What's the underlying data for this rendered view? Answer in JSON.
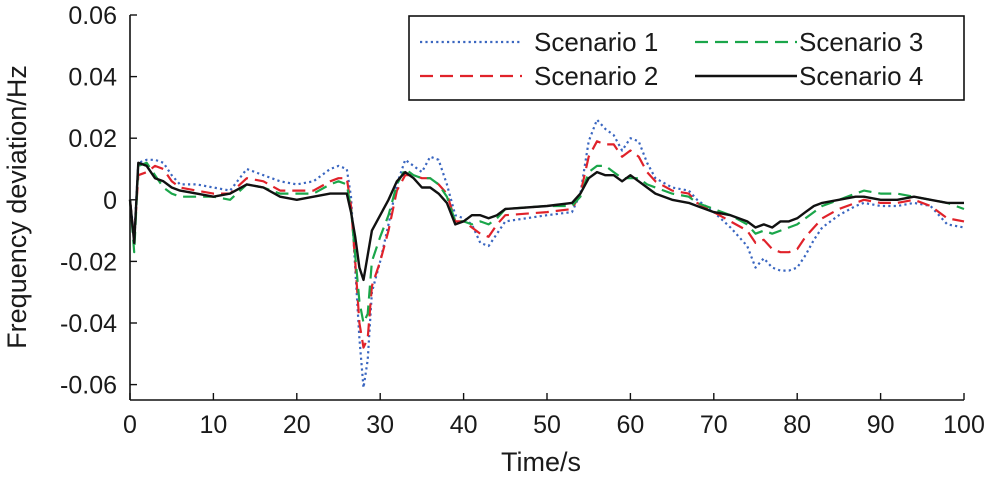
{
  "chart_data": {
    "type": "line",
    "title": "",
    "xlabel": "Time/s",
    "ylabel": "Frequency deviation/Hz",
    "xlim": [
      0,
      100
    ],
    "ylim": [
      -0.065,
      0.06
    ],
    "x_ticks": [
      0,
      10,
      20,
      30,
      40,
      50,
      60,
      70,
      80,
      90,
      100
    ],
    "x_tick_labels": [
      "0",
      "10",
      "20",
      "30",
      "40",
      "50",
      "60",
      "70",
      "80",
      "90",
      "100"
    ],
    "y_ticks": [
      -0.06,
      -0.04,
      -0.02,
      0,
      0.02,
      0.04,
      0.06
    ],
    "y_tick_labels": [
      "-0.06",
      "-0.04",
      "-0.02",
      "0",
      "0.02",
      "0.04",
      "0.06"
    ],
    "grid": false,
    "legend_position": "top-right",
    "series": [
      {
        "name": "Scenario 1",
        "color": "#3a66c0",
        "dash": "dotted",
        "points": [
          [
            0,
            0
          ],
          [
            0.5,
            -0.012
          ],
          [
            1,
            0.012
          ],
          [
            2,
            0.013
          ],
          [
            3,
            0.013
          ],
          [
            4,
            0.012
          ],
          [
            5,
            0.008
          ],
          [
            6,
            0.005
          ],
          [
            8,
            0.005
          ],
          [
            10,
            0.004
          ],
          [
            12,
            0.003
          ],
          [
            14,
            0.01
          ],
          [
            16,
            0.008
          ],
          [
            18,
            0.006
          ],
          [
            20,
            0.005
          ],
          [
            22,
            0.006
          ],
          [
            24,
            0.01
          ],
          [
            25,
            0.011
          ],
          [
            26,
            0.01
          ],
          [
            26.5,
            0.001
          ],
          [
            27,
            -0.022
          ],
          [
            27.5,
            -0.045
          ],
          [
            28,
            -0.061
          ],
          [
            28.5,
            -0.052
          ],
          [
            29,
            -0.03
          ],
          [
            30,
            -0.02
          ],
          [
            31,
            -0.008
          ],
          [
            32,
            0.005
          ],
          [
            33,
            0.013
          ],
          [
            34,
            0.011
          ],
          [
            35,
            0.009
          ],
          [
            36,
            0.014
          ],
          [
            37,
            0.013
          ],
          [
            38,
            0.005
          ],
          [
            39,
            -0.005
          ],
          [
            40,
            -0.006
          ],
          [
            41,
            -0.008
          ],
          [
            42,
            -0.014
          ],
          [
            43,
            -0.015
          ],
          [
            44,
            -0.011
          ],
          [
            45,
            -0.007
          ],
          [
            50,
            -0.005
          ],
          [
            53,
            -0.004
          ],
          [
            54,
            0.002
          ],
          [
            55,
            0.019
          ],
          [
            56,
            0.026
          ],
          [
            57,
            0.023
          ],
          [
            58,
            0.021
          ],
          [
            59,
            0.016
          ],
          [
            60,
            0.02
          ],
          [
            61,
            0.019
          ],
          [
            62,
            0.012
          ],
          [
            63,
            0.007
          ],
          [
            65,
            0.004
          ],
          [
            67,
            0.003
          ],
          [
            68,
            0
          ],
          [
            70,
            -0.004
          ],
          [
            72,
            -0.009
          ],
          [
            74,
            -0.015
          ],
          [
            75,
            -0.022
          ],
          [
            76,
            -0.019
          ],
          [
            77,
            -0.022
          ],
          [
            78,
            -0.023
          ],
          [
            79,
            -0.023
          ],
          [
            80,
            -0.022
          ],
          [
            81,
            -0.018
          ],
          [
            82,
            -0.013
          ],
          [
            83,
            -0.009
          ],
          [
            85,
            -0.005
          ],
          [
            87,
            -0.002
          ],
          [
            88,
            -0.001
          ],
          [
            90,
            -0.002
          ],
          [
            92,
            -0.002
          ],
          [
            94,
            -0.001
          ],
          [
            96,
            -0.002
          ],
          [
            98,
            -0.008
          ],
          [
            100,
            -0.009
          ]
        ]
      },
      {
        "name": "Scenario 2",
        "color": "#e0222a",
        "dash": "dashed",
        "points": [
          [
            0,
            0
          ],
          [
            0.5,
            -0.013
          ],
          [
            1,
            0.008
          ],
          [
            2,
            0.009
          ],
          [
            3,
            0.011
          ],
          [
            4,
            0.01
          ],
          [
            5,
            0.006
          ],
          [
            6,
            0.004
          ],
          [
            8,
            0.003
          ],
          [
            10,
            0.002
          ],
          [
            12,
            0.002
          ],
          [
            14,
            0.007
          ],
          [
            16,
            0.006
          ],
          [
            18,
            0.003
          ],
          [
            20,
            0.003
          ],
          [
            22,
            0.003
          ],
          [
            24,
            0.006
          ],
          [
            25,
            0.007
          ],
          [
            26,
            0.007
          ],
          [
            26.5,
            -0.002
          ],
          [
            27,
            -0.02
          ],
          [
            27.5,
            -0.04
          ],
          [
            28,
            -0.048
          ],
          [
            28.5,
            -0.045
          ],
          [
            29,
            -0.028
          ],
          [
            30,
            -0.02
          ],
          [
            31,
            -0.01
          ],
          [
            32,
            0.003
          ],
          [
            33,
            0.008
          ],
          [
            34,
            0.008
          ],
          [
            35,
            0.007
          ],
          [
            36,
            0.007
          ],
          [
            37,
            0.005
          ],
          [
            38,
            0.002
          ],
          [
            39,
            -0.007
          ],
          [
            40,
            -0.007
          ],
          [
            41,
            -0.009
          ],
          [
            42,
            -0.011
          ],
          [
            43,
            -0.012
          ],
          [
            44,
            -0.008
          ],
          [
            45,
            -0.005
          ],
          [
            50,
            -0.004
          ],
          [
            53,
            -0.003
          ],
          [
            54,
            0.002
          ],
          [
            55,
            0.014
          ],
          [
            56,
            0.019
          ],
          [
            57,
            0.018
          ],
          [
            58,
            0.018
          ],
          [
            59,
            0.014
          ],
          [
            60,
            0.016
          ],
          [
            61,
            0.014
          ],
          [
            62,
            0.009
          ],
          [
            63,
            0.006
          ],
          [
            65,
            0.003
          ],
          [
            67,
            0.002
          ],
          [
            68,
            -0.001
          ],
          [
            70,
            -0.004
          ],
          [
            72,
            -0.007
          ],
          [
            74,
            -0.01
          ],
          [
            75,
            -0.014
          ],
          [
            76,
            -0.013
          ],
          [
            77,
            -0.016
          ],
          [
            78,
            -0.017
          ],
          [
            79,
            -0.017
          ],
          [
            80,
            -0.016
          ],
          [
            81,
            -0.012
          ],
          [
            82,
            -0.009
          ],
          [
            83,
            -0.006
          ],
          [
            85,
            -0.003
          ],
          [
            87,
            -0.001
          ],
          [
            88,
            0
          ],
          [
            90,
            -0.001
          ],
          [
            92,
            -0.001
          ],
          [
            94,
            0
          ],
          [
            96,
            -0.002
          ],
          [
            98,
            -0.006
          ],
          [
            100,
            -0.007
          ]
        ]
      },
      {
        "name": "Scenario 3",
        "color": "#1aa64a",
        "dash": "dashed",
        "points": [
          [
            0,
            0
          ],
          [
            0.5,
            -0.017
          ],
          [
            1,
            0.011
          ],
          [
            2,
            0.012
          ],
          [
            3,
            0.008
          ],
          [
            4,
            0.004
          ],
          [
            5,
            0.002
          ],
          [
            6,
            0.001
          ],
          [
            8,
            0.001
          ],
          [
            10,
            0.001
          ],
          [
            12,
            0
          ],
          [
            14,
            0.005
          ],
          [
            16,
            0.004
          ],
          [
            18,
            0.002
          ],
          [
            20,
            0.002
          ],
          [
            22,
            0.002
          ],
          [
            24,
            0.005
          ],
          [
            25,
            0.006
          ],
          [
            26,
            0.005
          ],
          [
            26.5,
            -0.003
          ],
          [
            27,
            -0.018
          ],
          [
            27.5,
            -0.033
          ],
          [
            28,
            -0.04
          ],
          [
            28.5,
            -0.037
          ],
          [
            29,
            -0.02
          ],
          [
            30,
            -0.012
          ],
          [
            31,
            -0.005
          ],
          [
            32,
            0.005
          ],
          [
            33,
            0.01
          ],
          [
            34,
            0.008
          ],
          [
            35,
            0.007
          ],
          [
            36,
            0.007
          ],
          [
            37,
            0.005
          ],
          [
            38,
            0.001
          ],
          [
            39,
            -0.007
          ],
          [
            40,
            -0.007
          ],
          [
            41,
            -0.008
          ],
          [
            42,
            -0.007
          ],
          [
            43,
            -0.008
          ],
          [
            44,
            -0.006
          ],
          [
            45,
            -0.003
          ],
          [
            50,
            -0.002
          ],
          [
            53,
            -0.002
          ],
          [
            54,
            0.001
          ],
          [
            55,
            0.009
          ],
          [
            56,
            0.011
          ],
          [
            57,
            0.011
          ],
          [
            58,
            0.009
          ],
          [
            59,
            0.007
          ],
          [
            60,
            0.007
          ],
          [
            61,
            0.007
          ],
          [
            62,
            0.005
          ],
          [
            63,
            0.004
          ],
          [
            65,
            0.002
          ],
          [
            67,
            0.001
          ],
          [
            68,
            -0.001
          ],
          [
            70,
            -0.003
          ],
          [
            72,
            -0.005
          ],
          [
            74,
            -0.008
          ],
          [
            75,
            -0.011
          ],
          [
            76,
            -0.01
          ],
          [
            77,
            -0.011
          ],
          [
            78,
            -0.01
          ],
          [
            79,
            -0.009
          ],
          [
            80,
            -0.008
          ],
          [
            81,
            -0.006
          ],
          [
            82,
            -0.004
          ],
          [
            83,
            -0.002
          ],
          [
            85,
            0
          ],
          [
            87,
            0.002
          ],
          [
            88,
            0.003
          ],
          [
            90,
            0.002
          ],
          [
            92,
            0.002
          ],
          [
            94,
            0.001
          ],
          [
            96,
            0
          ],
          [
            98,
            -0.001
          ],
          [
            100,
            -0.003
          ]
        ]
      },
      {
        "name": "Scenario 4",
        "color": "#111111",
        "dash": "solid",
        "points": [
          [
            0,
            0
          ],
          [
            0.5,
            -0.014
          ],
          [
            1,
            0.012
          ],
          [
            2,
            0.011
          ],
          [
            3,
            0.007
          ],
          [
            4,
            0.006
          ],
          [
            5,
            0.004
          ],
          [
            6,
            0.003
          ],
          [
            8,
            0.002
          ],
          [
            10,
            0.001
          ],
          [
            12,
            0.002
          ],
          [
            14,
            0.005
          ],
          [
            16,
            0.004
          ],
          [
            18,
            0.001
          ],
          [
            20,
            0
          ],
          [
            22,
            0.001
          ],
          [
            24,
            0.002
          ],
          [
            25,
            0.002
          ],
          [
            26,
            0.002
          ],
          [
            26.5,
            -0.004
          ],
          [
            27,
            -0.012
          ],
          [
            27.5,
            -0.022
          ],
          [
            28,
            -0.026
          ],
          [
            28.5,
            -0.018
          ],
          [
            29,
            -0.01
          ],
          [
            30,
            -0.005
          ],
          [
            31,
            0
          ],
          [
            32,
            0.006
          ],
          [
            33,
            0.009
          ],
          [
            34,
            0.007
          ],
          [
            35,
            0.004
          ],
          [
            36,
            0.004
          ],
          [
            37,
            0.002
          ],
          [
            38,
            -0.001
          ],
          [
            39,
            -0.008
          ],
          [
            40,
            -0.007
          ],
          [
            41,
            -0.005
          ],
          [
            42,
            -0.005
          ],
          [
            43,
            -0.006
          ],
          [
            44,
            -0.005
          ],
          [
            45,
            -0.003
          ],
          [
            50,
            -0.002
          ],
          [
            53,
            -0.001
          ],
          [
            54,
            0.002
          ],
          [
            55,
            0.007
          ],
          [
            56,
            0.009
          ],
          [
            57,
            0.008
          ],
          [
            58,
            0.008
          ],
          [
            59,
            0.006
          ],
          [
            60,
            0.008
          ],
          [
            61,
            0.006
          ],
          [
            62,
            0.004
          ],
          [
            63,
            0.002
          ],
          [
            65,
            0
          ],
          [
            67,
            -0.001
          ],
          [
            68,
            -0.002
          ],
          [
            70,
            -0.004
          ],
          [
            72,
            -0.005
          ],
          [
            74,
            -0.007
          ],
          [
            75,
            -0.009
          ],
          [
            76,
            -0.008
          ],
          [
            77,
            -0.009
          ],
          [
            78,
            -0.007
          ],
          [
            79,
            -0.007
          ],
          [
            80,
            -0.006
          ],
          [
            81,
            -0.004
          ],
          [
            82,
            -0.002
          ],
          [
            83,
            -0.001
          ],
          [
            85,
            0
          ],
          [
            87,
            0.001
          ],
          [
            88,
            0.001
          ],
          [
            90,
            0
          ],
          [
            92,
            0
          ],
          [
            94,
            0.001
          ],
          [
            96,
            0
          ],
          [
            98,
            -0.001
          ],
          [
            100,
            -0.001
          ]
        ]
      }
    ]
  }
}
